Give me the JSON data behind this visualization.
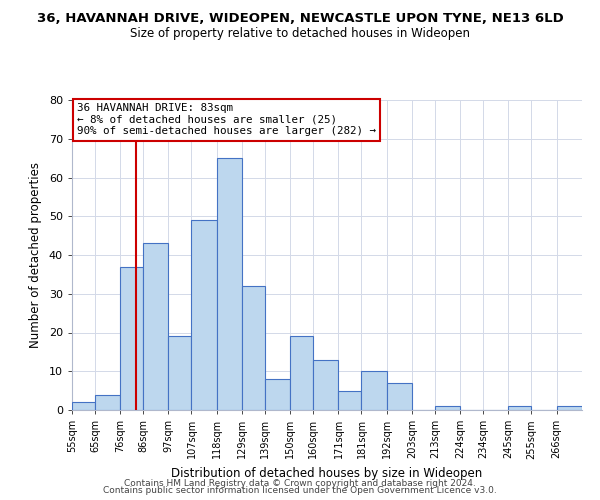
{
  "title": "36, HAVANNAH DRIVE, WIDEOPEN, NEWCASTLE UPON TYNE, NE13 6LD",
  "subtitle": "Size of property relative to detached houses in Wideopen",
  "xlabel": "Distribution of detached houses by size in Wideopen",
  "ylabel": "Number of detached properties",
  "bin_labels": [
    "55sqm",
    "65sqm",
    "76sqm",
    "86sqm",
    "97sqm",
    "107sqm",
    "118sqm",
    "129sqm",
    "139sqm",
    "150sqm",
    "160sqm",
    "171sqm",
    "181sqm",
    "192sqm",
    "203sqm",
    "213sqm",
    "224sqm",
    "234sqm",
    "245sqm",
    "255sqm",
    "266sqm"
  ],
  "bin_edges": [
    55,
    65,
    76,
    86,
    97,
    107,
    118,
    129,
    139,
    150,
    160,
    171,
    181,
    192,
    203,
    213,
    224,
    234,
    245,
    255,
    266
  ],
  "bar_heights": [
    2,
    4,
    37,
    43,
    19,
    49,
    65,
    32,
    8,
    19,
    13,
    5,
    10,
    7,
    0,
    1,
    0,
    0,
    1,
    0,
    1
  ],
  "bar_color": "#bdd7ee",
  "bar_edge_color": "#4472c4",
  "vline_x": 83,
  "vline_color": "#cc0000",
  "annotation_line1": "36 HAVANNAH DRIVE: 83sqm",
  "annotation_line2": "← 8% of detached houses are smaller (25)",
  "annotation_line3": "90% of semi-detached houses are larger (282) →",
  "annotation_box_color": "#ffffff",
  "annotation_box_edge": "#cc0000",
  "ylim": [
    0,
    80
  ],
  "yticks": [
    0,
    10,
    20,
    30,
    40,
    50,
    60,
    70,
    80
  ],
  "xlim_min": 55,
  "xlim_max": 277,
  "footer1": "Contains HM Land Registry data © Crown copyright and database right 2024.",
  "footer2": "Contains public sector information licensed under the Open Government Licence v3.0.",
  "bg_color": "#ffffff",
  "grid_color": "#d3d9e8"
}
